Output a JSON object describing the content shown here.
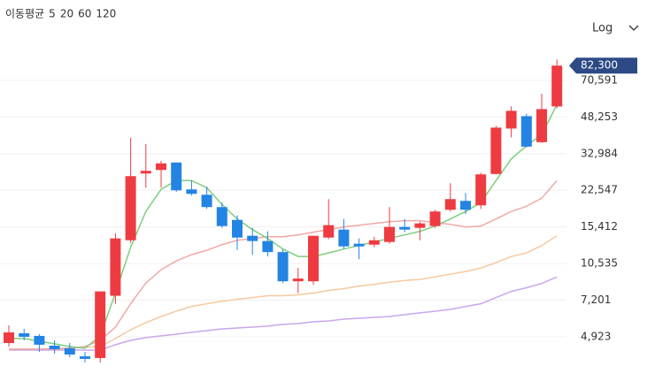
{
  "chart_data": {
    "type": "candlestick",
    "legend_title": "이동평균",
    "scale_label": "Log",
    "log_scale": true,
    "grid": true,
    "up_color": "#ee3b41",
    "down_color": "#2484e4",
    "ylim": [
      3440,
      93800
    ],
    "yticks": [
      {
        "value": 4923,
        "label": "4,923"
      },
      {
        "value": 7201,
        "label": "7,201"
      },
      {
        "value": 10535,
        "label": "10,535"
      },
      {
        "value": 15412,
        "label": "15,412"
      },
      {
        "value": 22547,
        "label": "22,547"
      },
      {
        "value": 32984,
        "label": "32,984"
      },
      {
        "value": 48253,
        "label": "48,253"
      },
      {
        "value": 70591,
        "label": "70,591"
      }
    ],
    "last_price": {
      "value": 82300,
      "value_label": "82,300",
      "color": "#2d4a86"
    },
    "candles": {
      "open": [
        4615,
        5105,
        4970,
        4490,
        4370,
        4020,
        3950,
        7540,
        13420,
        26840,
        27850,
        30090,
        22760,
        21530,
        18940,
        16580,
        14060,
        13310,
        11870,
        8765,
        8765,
        13800,
        14990,
        12945,
        12820,
        13185,
        15410,
        15270,
        15550,
        18420,
        20200,
        19290,
        26710,
        42820,
        48700,
        37170,
        53880
      ],
      "high": [
        5550,
        5345,
        5065,
        4745,
        4615,
        4210,
        7890,
        14450,
        38910,
        36490,
        30640,
        30090,
        24950,
        23390,
        19830,
        17370,
        15270,
        14720,
        12200,
        10060,
        14060,
        20570,
        16740,
        13680,
        13930,
        18940,
        16740,
        16280,
        18420,
        24260,
        21930,
        27090,
        44020,
        53880,
        50060,
        61490,
        87760
      ],
      "low": [
        4450,
        4745,
        4210,
        4135,
        3985,
        3770,
        3770,
        6940,
        13065,
        23180,
        23180,
        22140,
        21340,
        18590,
        15270,
        12140,
        11550,
        11340,
        8605,
        7750,
        8450,
        13550,
        12250,
        11030,
        12480,
        12945,
        14590,
        13420,
        15270,
        18090,
        17600,
        18590,
        26600,
        39070,
        35170,
        36830,
        52880
      ],
      "close": [
        5155,
        4923,
        4535,
        4330,
        4095,
        3915,
        7890,
        13680,
        26120,
        27600,
        29820,
        22547,
        21730,
        18940,
        15550,
        13800,
        13310,
        11870,
        8765,
        9015,
        14060,
        15700,
        12590,
        12590,
        13420,
        15412,
        14990,
        15990,
        18090,
        20570,
        18420,
        26600,
        43220,
        51460,
        35490,
        52400,
        82300
      ]
    },
    "series": [
      {
        "name": "5",
        "color": "#3aa84a",
        "line_color": "#7ccf7c",
        "values": [
          4835,
          4835,
          4700,
          4575,
          4450,
          4370,
          4970,
          7750,
          12480,
          18090,
          22760,
          24950,
          24950,
          23180,
          19470,
          16740,
          14990,
          13680,
          12250,
          11340,
          11340,
          11760,
          12250,
          12710,
          13185,
          13680,
          14190,
          14720,
          15550,
          16740,
          18090,
          19830,
          24950,
          31220,
          35820,
          40150,
          54860
        ]
      },
      {
        "name": "20",
        "color": "#e5474b",
        "line_color": "#f2a7a7",
        "values": [
          4330,
          4330,
          4330,
          4330,
          4370,
          4450,
          4745,
          5445,
          6940,
          8605,
          9880,
          10830,
          11550,
          12090,
          12820,
          13420,
          13680,
          13930,
          13930,
          14190,
          14590,
          14990,
          15410,
          15700,
          15990,
          16280,
          16440,
          16440,
          16140,
          15840,
          15410,
          15550,
          16740,
          18090,
          19110,
          20760,
          24950
        ]
      },
      {
        "name": "60",
        "color": "#ee9340",
        "line_color": "#f6c9a0",
        "values": [
          4330,
          4330,
          4330,
          4370,
          4370,
          4410,
          4450,
          4835,
          5295,
          5700,
          6080,
          6425,
          6750,
          6940,
          7135,
          7270,
          7400,
          7540,
          7540,
          7610,
          7750,
          7970,
          8115,
          8340,
          8495,
          8670,
          8830,
          8930,
          9180,
          9440,
          9700,
          10060,
          10630,
          11340,
          11760,
          12710,
          14060
        ]
      },
      {
        "name": "120",
        "color": "#9060d8",
        "line_color": "#c9a6ee",
        "values": [
          4290,
          4290,
          4290,
          4290,
          4290,
          4290,
          4290,
          4535,
          4745,
          4880,
          4970,
          5060,
          5155,
          5250,
          5345,
          5395,
          5445,
          5500,
          5600,
          5650,
          5755,
          5805,
          5915,
          5970,
          6025,
          6080,
          6195,
          6310,
          6425,
          6540,
          6750,
          6940,
          7400,
          7890,
          8190,
          8570,
          9160
        ]
      }
    ]
  }
}
